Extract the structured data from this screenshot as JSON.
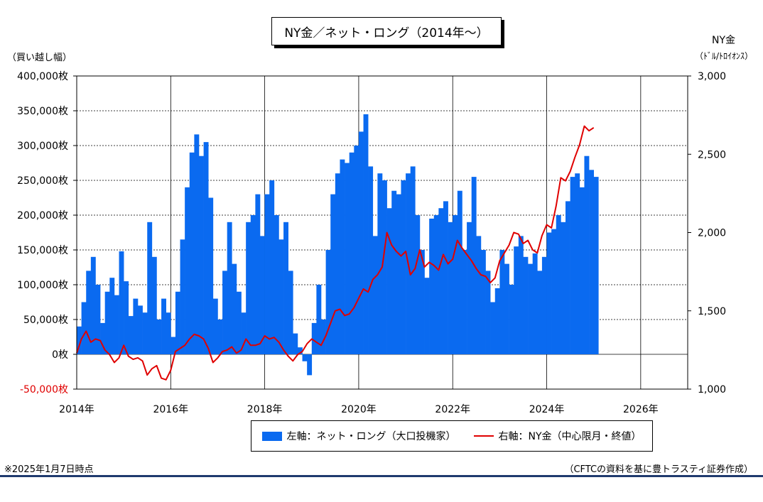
{
  "chart_data": {
    "type": "bar+line",
    "title": "NY金／ネット・ロング（2014年～）",
    "left_axis": {
      "label": "（買い越し幅）",
      "range": [
        -50000,
        400000
      ],
      "ticks": [
        {
          "value": 400000,
          "label": "400,000枚"
        },
        {
          "value": 350000,
          "label": "350,000枚"
        },
        {
          "value": 300000,
          "label": "300,000枚"
        },
        {
          "value": 250000,
          "label": "250,000枚"
        },
        {
          "value": 200000,
          "label": "200,000枚"
        },
        {
          "value": 150000,
          "label": "150,000枚"
        },
        {
          "value": 100000,
          "label": "100,000枚"
        },
        {
          "value": 50000,
          "label": "50,000枚"
        },
        {
          "value": 0,
          "label": "0枚"
        },
        {
          "value": -50000,
          "label": "-50,000枚"
        }
      ]
    },
    "right_axis": {
      "label": "NY金",
      "unit": "（ﾄﾞﾙ/ﾄﾛｲｵﾝｽ）",
      "range": [
        1000,
        3000
      ],
      "ticks": [
        {
          "value": 3000,
          "label": "3,000"
        },
        {
          "value": 2500,
          "label": "2,500"
        },
        {
          "value": 2000,
          "label": "2,000"
        },
        {
          "value": 1500,
          "label": "1,500"
        },
        {
          "value": 1000,
          "label": "1,000"
        }
      ]
    },
    "x_axis": {
      "range": [
        2014,
        2027
      ],
      "ticks": [
        {
          "value": 2014,
          "label": "2014年"
        },
        {
          "value": 2016,
          "label": "2016年"
        },
        {
          "value": 2018,
          "label": "2018年"
        },
        {
          "value": 2020,
          "label": "2020年"
        },
        {
          "value": 2022,
          "label": "2022年"
        },
        {
          "value": 2024,
          "label": "2024年"
        },
        {
          "value": 2026,
          "label": "2026年"
        }
      ]
    },
    "grid": true,
    "series": [
      {
        "name": "左軸：ネット・ロング（大口投機家）",
        "type": "bar",
        "axis": "left",
        "color": "#0a6af0",
        "points": [
          [
            2014.0,
            40000
          ],
          [
            2014.1,
            75000
          ],
          [
            2014.2,
            120000
          ],
          [
            2014.3,
            140000
          ],
          [
            2014.4,
            100000
          ],
          [
            2014.5,
            45000
          ],
          [
            2014.6,
            90000
          ],
          [
            2014.7,
            110000
          ],
          [
            2014.8,
            85000
          ],
          [
            2014.9,
            148000
          ],
          [
            2015.0,
            105000
          ],
          [
            2015.1,
            55000
          ],
          [
            2015.2,
            80000
          ],
          [
            2015.3,
            70000
          ],
          [
            2015.4,
            60000
          ],
          [
            2015.5,
            190000
          ],
          [
            2015.6,
            140000
          ],
          [
            2015.7,
            50000
          ],
          [
            2015.8,
            80000
          ],
          [
            2015.9,
            60000
          ],
          [
            2016.0,
            25000
          ],
          [
            2016.1,
            90000
          ],
          [
            2016.2,
            165000
          ],
          [
            2016.3,
            240000
          ],
          [
            2016.4,
            290000
          ],
          [
            2016.5,
            316000
          ],
          [
            2016.6,
            285000
          ],
          [
            2016.7,
            305000
          ],
          [
            2016.8,
            225000
          ],
          [
            2016.9,
            80000
          ],
          [
            2017.0,
            50000
          ],
          [
            2017.1,
            120000
          ],
          [
            2017.2,
            190000
          ],
          [
            2017.3,
            130000
          ],
          [
            2017.4,
            90000
          ],
          [
            2017.5,
            60000
          ],
          [
            2017.6,
            190000
          ],
          [
            2017.7,
            200000
          ],
          [
            2017.8,
            230000
          ],
          [
            2017.9,
            170000
          ],
          [
            2018.0,
            230000
          ],
          [
            2018.1,
            250000
          ],
          [
            2018.2,
            200000
          ],
          [
            2018.3,
            165000
          ],
          [
            2018.4,
            190000
          ],
          [
            2018.5,
            120000
          ],
          [
            2018.6,
            30000
          ],
          [
            2018.7,
            10000
          ],
          [
            2018.8,
            -10000
          ],
          [
            2018.9,
            -30000
          ],
          [
            2019.0,
            45000
          ],
          [
            2019.1,
            100000
          ],
          [
            2019.2,
            50000
          ],
          [
            2019.3,
            150000
          ],
          [
            2019.4,
            230000
          ],
          [
            2019.5,
            260000
          ],
          [
            2019.6,
            280000
          ],
          [
            2019.7,
            275000
          ],
          [
            2019.8,
            290000
          ],
          [
            2019.9,
            300000
          ],
          [
            2020.0,
            320000
          ],
          [
            2020.1,
            345000
          ],
          [
            2020.2,
            270000
          ],
          [
            2020.3,
            170000
          ],
          [
            2020.4,
            260000
          ],
          [
            2020.5,
            250000
          ],
          [
            2020.6,
            210000
          ],
          [
            2020.7,
            235000
          ],
          [
            2020.8,
            230000
          ],
          [
            2020.9,
            250000
          ],
          [
            2021.0,
            260000
          ],
          [
            2021.1,
            270000
          ],
          [
            2021.2,
            200000
          ],
          [
            2021.3,
            150000
          ],
          [
            2021.4,
            110000
          ],
          [
            2021.5,
            195000
          ],
          [
            2021.6,
            200000
          ],
          [
            2021.7,
            210000
          ],
          [
            2021.8,
            220000
          ],
          [
            2021.9,
            190000
          ],
          [
            2022.0,
            200000
          ],
          [
            2022.1,
            235000
          ],
          [
            2022.2,
            150000
          ],
          [
            2022.3,
            190000
          ],
          [
            2022.4,
            255000
          ],
          [
            2022.5,
            170000
          ],
          [
            2022.6,
            150000
          ],
          [
            2022.7,
            120000
          ],
          [
            2022.8,
            75000
          ],
          [
            2022.9,
            95000
          ],
          [
            2023.0,
            150000
          ],
          [
            2023.1,
            130000
          ],
          [
            2023.2,
            100000
          ],
          [
            2023.3,
            155000
          ],
          [
            2023.4,
            170000
          ],
          [
            2023.5,
            140000
          ],
          [
            2023.6,
            130000
          ],
          [
            2023.7,
            145000
          ],
          [
            2023.8,
            120000
          ],
          [
            2023.9,
            140000
          ],
          [
            2024.0,
            175000
          ],
          [
            2024.1,
            180000
          ],
          [
            2024.2,
            200000
          ],
          [
            2024.3,
            190000
          ],
          [
            2024.4,
            220000
          ],
          [
            2024.5,
            255000
          ],
          [
            2024.6,
            260000
          ],
          [
            2024.7,
            240000
          ],
          [
            2024.8,
            285000
          ],
          [
            2024.9,
            265000
          ],
          [
            2025.0,
            255000
          ]
        ]
      },
      {
        "name": "右軸：NY金（中心限月・終値）",
        "type": "line",
        "axis": "right",
        "color": "#e00000",
        "points": [
          [
            2014.0,
            1230
          ],
          [
            2014.1,
            1320
          ],
          [
            2014.2,
            1370
          ],
          [
            2014.3,
            1300
          ],
          [
            2014.4,
            1320
          ],
          [
            2014.5,
            1310
          ],
          [
            2014.6,
            1250
          ],
          [
            2014.7,
            1220
          ],
          [
            2014.8,
            1170
          ],
          [
            2014.9,
            1200
          ],
          [
            2015.0,
            1280
          ],
          [
            2015.1,
            1210
          ],
          [
            2015.2,
            1190
          ],
          [
            2015.3,
            1200
          ],
          [
            2015.4,
            1180
          ],
          [
            2015.5,
            1090
          ],
          [
            2015.6,
            1130
          ],
          [
            2015.7,
            1150
          ],
          [
            2015.8,
            1070
          ],
          [
            2015.9,
            1060
          ],
          [
            2016.0,
            1120
          ],
          [
            2016.1,
            1240
          ],
          [
            2016.2,
            1260
          ],
          [
            2016.3,
            1280
          ],
          [
            2016.4,
            1320
          ],
          [
            2016.5,
            1350
          ],
          [
            2016.6,
            1340
          ],
          [
            2016.7,
            1320
          ],
          [
            2016.8,
            1260
          ],
          [
            2016.9,
            1170
          ],
          [
            2017.0,
            1200
          ],
          [
            2017.1,
            1240
          ],
          [
            2017.2,
            1250
          ],
          [
            2017.3,
            1270
          ],
          [
            2017.4,
            1230
          ],
          [
            2017.5,
            1250
          ],
          [
            2017.6,
            1320
          ],
          [
            2017.7,
            1280
          ],
          [
            2017.8,
            1280
          ],
          [
            2017.9,
            1290
          ],
          [
            2018.0,
            1340
          ],
          [
            2018.1,
            1320
          ],
          [
            2018.2,
            1330
          ],
          [
            2018.3,
            1300
          ],
          [
            2018.4,
            1250
          ],
          [
            2018.5,
            1210
          ],
          [
            2018.6,
            1180
          ],
          [
            2018.7,
            1220
          ],
          [
            2018.8,
            1240
          ],
          [
            2018.9,
            1290
          ],
          [
            2019.0,
            1320
          ],
          [
            2019.1,
            1300
          ],
          [
            2019.2,
            1280
          ],
          [
            2019.3,
            1340
          ],
          [
            2019.4,
            1420
          ],
          [
            2019.5,
            1500
          ],
          [
            2019.6,
            1510
          ],
          [
            2019.7,
            1470
          ],
          [
            2019.8,
            1480
          ],
          [
            2019.9,
            1520
          ],
          [
            2020.0,
            1580
          ],
          [
            2020.1,
            1640
          ],
          [
            2020.2,
            1620
          ],
          [
            2020.3,
            1700
          ],
          [
            2020.4,
            1730
          ],
          [
            2020.5,
            1780
          ],
          [
            2020.6,
            2000
          ],
          [
            2020.7,
            1920
          ],
          [
            2020.8,
            1880
          ],
          [
            2020.9,
            1850
          ],
          [
            2021.0,
            1880
          ],
          [
            2021.1,
            1730
          ],
          [
            2021.2,
            1770
          ],
          [
            2021.3,
            1890
          ],
          [
            2021.4,
            1780
          ],
          [
            2021.5,
            1810
          ],
          [
            2021.6,
            1790
          ],
          [
            2021.7,
            1760
          ],
          [
            2021.8,
            1860
          ],
          [
            2021.9,
            1800
          ],
          [
            2022.0,
            1830
          ],
          [
            2022.1,
            1950
          ],
          [
            2022.2,
            1900
          ],
          [
            2022.3,
            1860
          ],
          [
            2022.4,
            1820
          ],
          [
            2022.5,
            1770
          ],
          [
            2022.6,
            1730
          ],
          [
            2022.7,
            1720
          ],
          [
            2022.8,
            1680
          ],
          [
            2022.9,
            1710
          ],
          [
            2023.0,
            1820
          ],
          [
            2023.1,
            1870
          ],
          [
            2023.2,
            1920
          ],
          [
            2023.3,
            2000
          ],
          [
            2023.4,
            1990
          ],
          [
            2023.5,
            1930
          ],
          [
            2023.6,
            1950
          ],
          [
            2023.7,
            1890
          ],
          [
            2023.8,
            1870
          ],
          [
            2023.9,
            1980
          ],
          [
            2024.0,
            2050
          ],
          [
            2024.1,
            2030
          ],
          [
            2024.2,
            2170
          ],
          [
            2024.3,
            2350
          ],
          [
            2024.4,
            2330
          ],
          [
            2024.5,
            2390
          ],
          [
            2024.6,
            2480
          ],
          [
            2024.7,
            2560
          ],
          [
            2024.8,
            2680
          ],
          [
            2024.9,
            2650
          ],
          [
            2025.0,
            2670
          ]
        ]
      }
    ],
    "legend_position": "bottom"
  },
  "notes": {
    "date": "※2025年1月7日時点",
    "source": "（CFTCの資料を基に豊トラスティ証券作成）"
  }
}
